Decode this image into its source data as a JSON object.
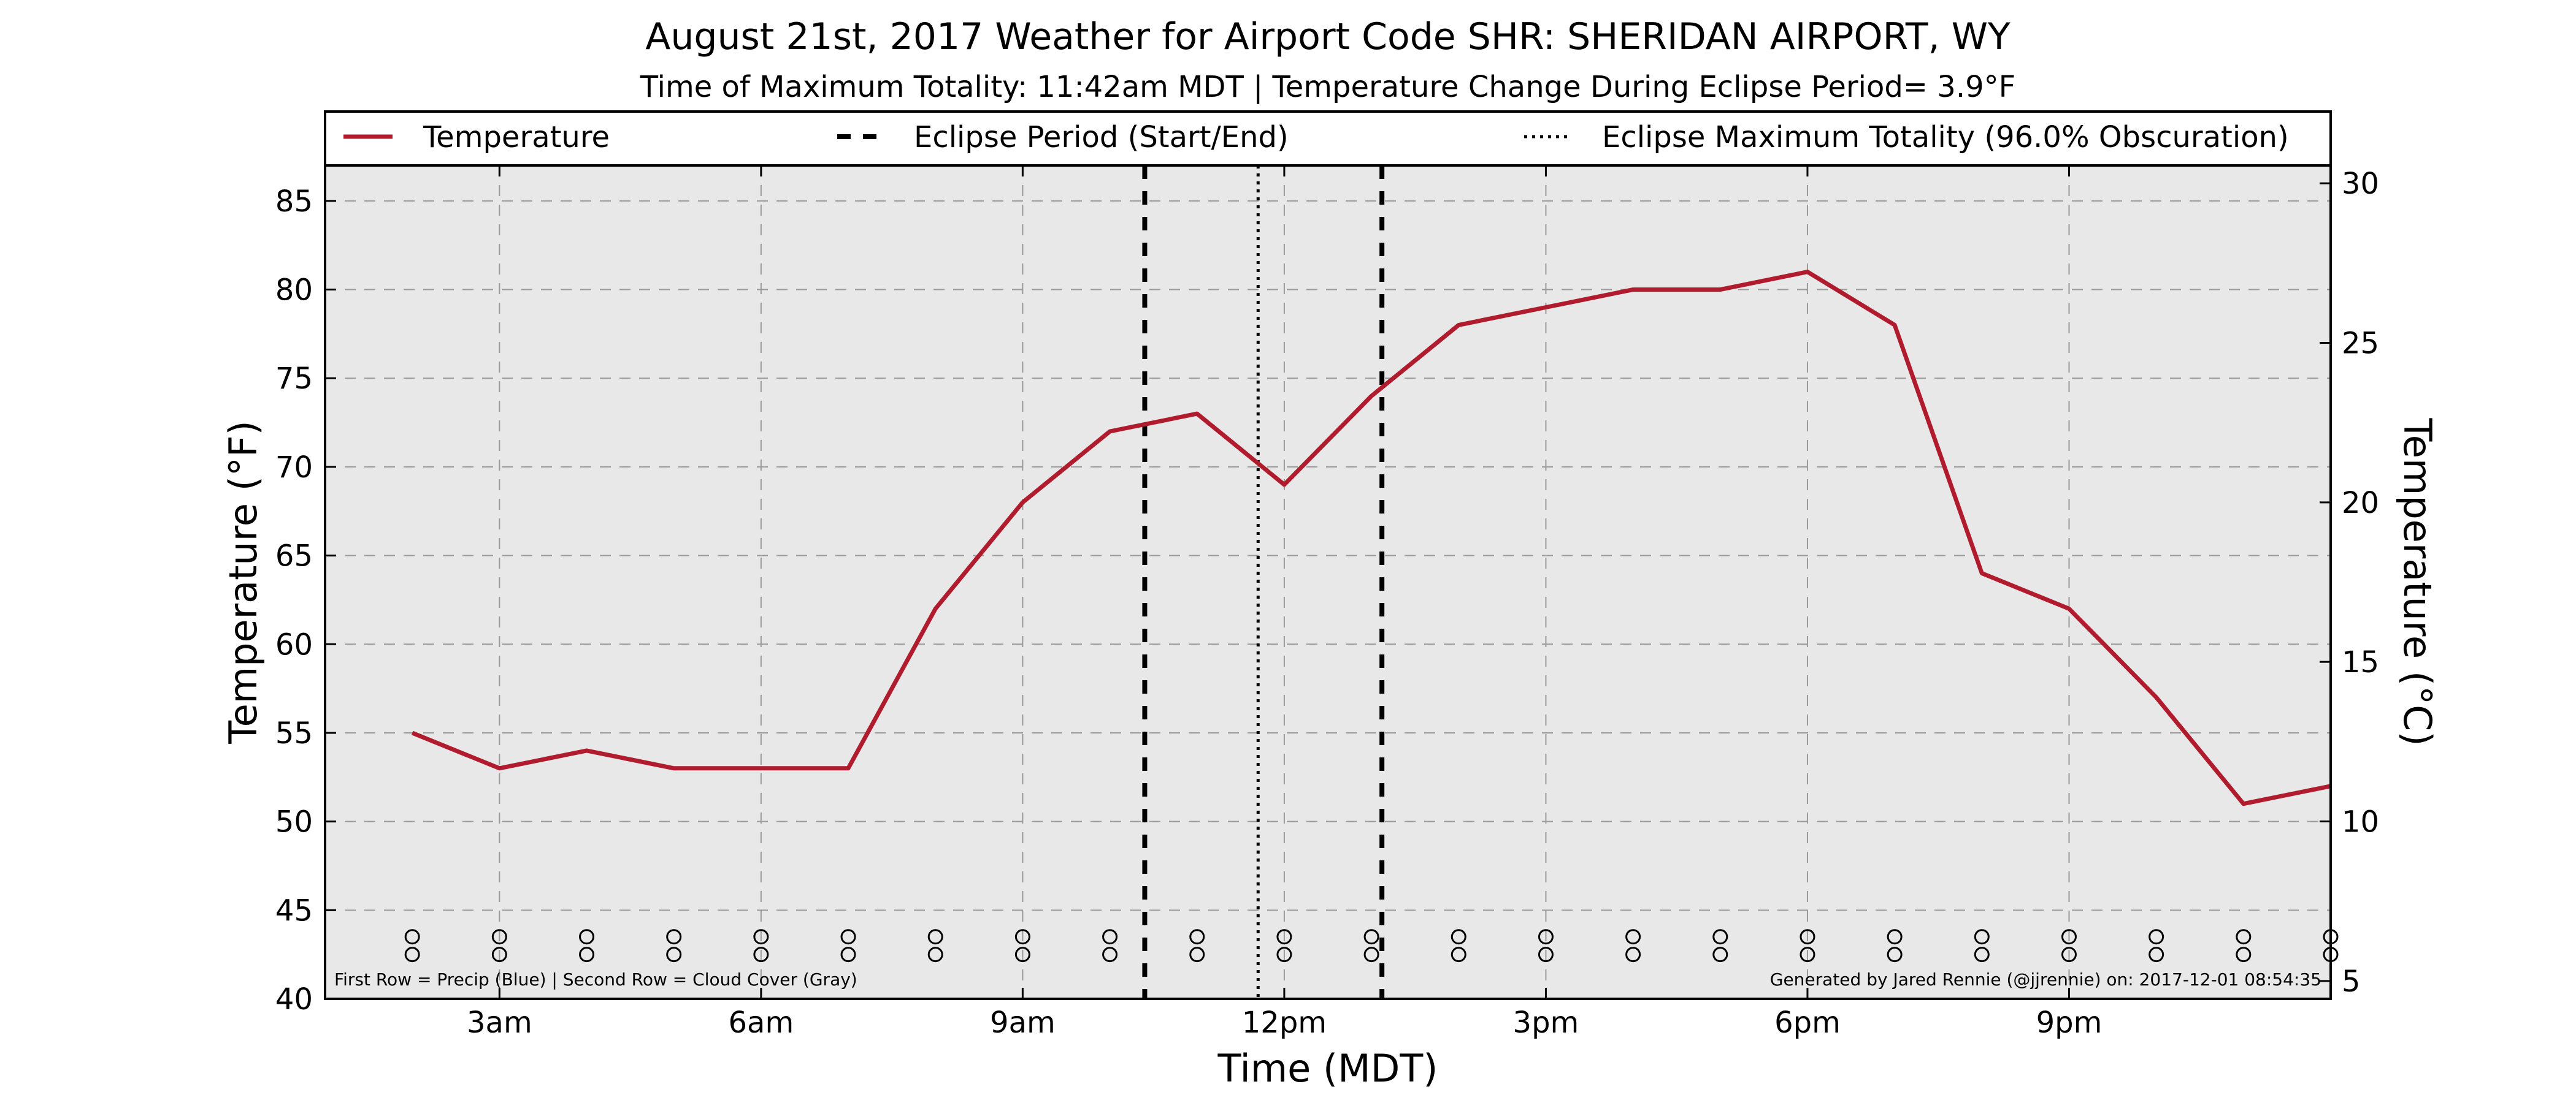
{
  "chart_data": {
    "type": "line",
    "title": "August 21st, 2017 Weather for Airport Code SHR: SHERIDAN AIRPORT, WY",
    "subtitle": "Time of Maximum Totality: 11:42am MDT | Temperature Change During Eclipse Period= 3.9°F",
    "xlabel": "Time (MDT)",
    "ylabel": "Temperature (°F)",
    "ylabel_right": "Temperature (°C)",
    "xlim": [
      1.0,
      24.0
    ],
    "ylim": [
      40,
      87
    ],
    "ylim_right": [
      4.44,
      30.56
    ],
    "grid": true,
    "legend_placement": "top",
    "colors": {
      "temperature": "#b01c2e",
      "plot_bg": "#e8e8e8",
      "eclipse": "#000000"
    },
    "x_ticks": [
      {
        "x": 3,
        "label": "3am"
      },
      {
        "x": 6,
        "label": "6am"
      },
      {
        "x": 9,
        "label": "9am"
      },
      {
        "x": 12,
        "label": "12pm"
      },
      {
        "x": 15,
        "label": "3pm"
      },
      {
        "x": 18,
        "label": "6pm"
      },
      {
        "x": 21,
        "label": "9pm"
      }
    ],
    "y_ticks": [
      40,
      45,
      50,
      55,
      60,
      65,
      70,
      75,
      80,
      85
    ],
    "y_ticks_right": [
      5,
      10,
      15,
      20,
      25,
      30
    ],
    "series": [
      {
        "name": "Temperature",
        "x": [
          2,
          3,
          4,
          5,
          6,
          7,
          8,
          9,
          10,
          11,
          12,
          13,
          14,
          15,
          16,
          17,
          18,
          19,
          20,
          21,
          22,
          23,
          24
        ],
        "values": [
          55,
          53,
          54,
          53,
          53,
          53,
          62,
          68,
          72,
          73,
          69,
          74,
          78,
          79,
          80,
          80,
          81,
          78,
          64,
          62,
          57,
          51,
          52
        ]
      }
    ],
    "eclipse_start": 10.4,
    "eclipse_end": 13.12,
    "eclipse_max": 11.7,
    "legend": [
      {
        "label": "Temperature",
        "style": "solid"
      },
      {
        "label": "Eclipse Period (Start/End)",
        "style": "dashed"
      },
      {
        "label": "Eclipse Maximum Totality (96.0% Obscuration)",
        "style": "dotted"
      }
    ],
    "marker_rows": {
      "x": [
        2,
        3,
        4,
        5,
        6,
        7,
        8,
        9,
        10,
        11,
        12,
        13,
        14,
        15,
        16,
        17,
        18,
        19,
        20,
        21,
        22,
        23,
        24
      ],
      "precip_y": 43.5,
      "cloud_y": 42.5
    },
    "footnote_left": "First Row = Precip (Blue) | Second Row = Cloud Cover (Gray)",
    "footnote_right": "Generated by Jared Rennie (@jjrennie) on: 2017-12-01 08:54:35"
  }
}
